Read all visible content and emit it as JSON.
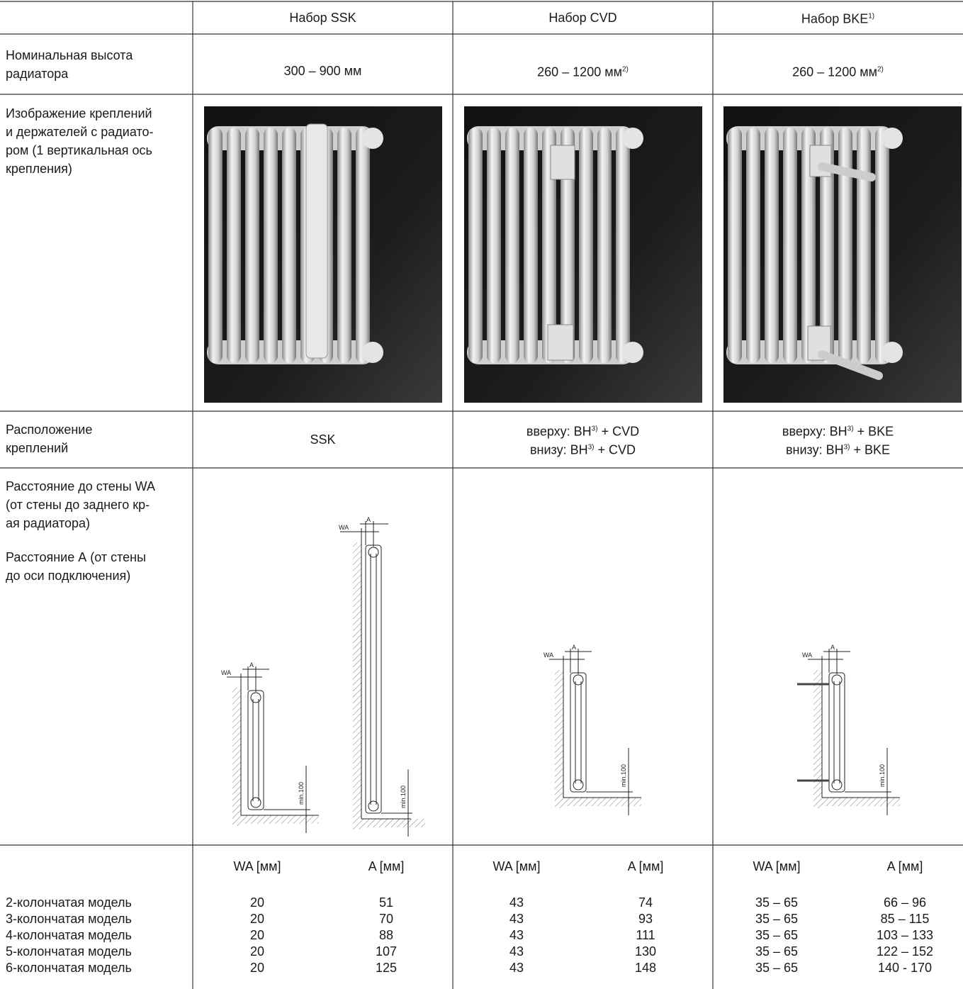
{
  "header": {
    "columns": [
      {
        "text": "Набор SSK"
      },
      {
        "text": "Набор CVD"
      },
      {
        "text": "Набор BKE",
        "note": "1)"
      }
    ]
  },
  "height": {
    "label": [
      "Номинальная высота",
      "радиатора"
    ],
    "values": [
      {
        "text": "300 – 900 мм"
      },
      {
        "text": "260 – 1200 мм",
        "note": "2)"
      },
      {
        "text": "260 – 1200 мм",
        "note": "2)"
      }
    ]
  },
  "image": {
    "label": [
      "Изображение креплений",
      "и держателей с радиато-",
      "ром (1 вертикальная ось",
      "крепления)"
    ]
  },
  "placement": {
    "label": [
      "Расположение",
      "креплений"
    ],
    "values": [
      [
        {
          "before": "SSK"
        }
      ],
      [
        {
          "before": "вверху: BH",
          "note": "3)",
          "after": " + CVD"
        },
        {
          "before": "внизу:  BH",
          "note": "3)",
          "after": " + CVD"
        }
      ],
      [
        {
          "before": "вверху: BH",
          "note": "3)",
          "after": " + BKE"
        },
        {
          "before": "внизу:  BH",
          "note": "3)",
          "after": " + BKE"
        }
      ]
    ]
  },
  "distance": {
    "label": [
      [
        "Расстояние до стены WA",
        "(от стены до заднего кр-",
        "ая радиатора)"
      ],
      [
        "Расстояние А (от стены",
        "до оси подключения)"
      ]
    ],
    "diagrams": [
      {
        "wa": "WA",
        "a": "A",
        "min": "min.100"
      },
      {
        "wa": "WA",
        "a": "A",
        "min": "min.100"
      },
      {
        "wa": "WA",
        "a": "A",
        "min": "min.100"
      },
      {
        "wa": "WA",
        "a": "A",
        "min": "min.100"
      }
    ]
  },
  "table": {
    "subheader": [
      "WA [мм]",
      "A [мм]",
      "WA [мм]",
      "A [мм]",
      "WA [мм]",
      "A [мм]"
    ],
    "rows": [
      [
        "2-колончатая модель",
        "20",
        "51",
        "43",
        "74",
        "35 – 65",
        "66 – 96"
      ],
      [
        "3-колончатая модель",
        "20",
        "70",
        "43",
        "93",
        "35 – 65",
        "85 – 115"
      ],
      [
        "4-колончатая модель",
        "20",
        "88",
        "43",
        "111",
        "35 – 65",
        "103 – 133"
      ],
      [
        "5-колончатая модель",
        "20",
        "107",
        "43",
        "130",
        "35 – 65",
        "122 – 152"
      ],
      [
        "6-колончатая модель",
        "20",
        "125",
        "43",
        "148",
        "35 – 65",
        "140 - 170"
      ]
    ]
  }
}
